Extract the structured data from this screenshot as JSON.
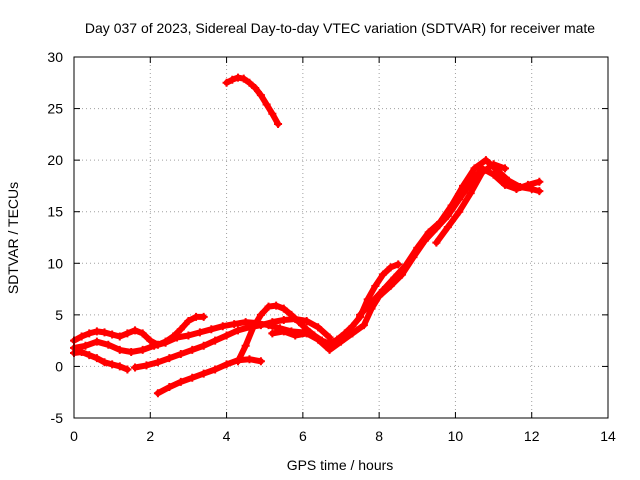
{
  "chart_data": {
    "type": "scatter",
    "title": "Day 037 of 2023, Sidereal Day-to-day VTEC variation (SDTVAR) for receiver mate",
    "xlabel": "GPS time / hours",
    "ylabel": "SDTVAR / TECUs",
    "xlim": [
      0,
      14
    ],
    "ylim": [
      -5,
      30
    ],
    "xticks": [
      0,
      2,
      4,
      6,
      8,
      10,
      12,
      14
    ],
    "yticks": [
      -5,
      0,
      5,
      10,
      15,
      20,
      25,
      30
    ],
    "grid": true,
    "series_color": "#ff0000",
    "series": [
      {
        "x": [
          0.0,
          0.2,
          0.4,
          0.6,
          0.8,
          1.0,
          1.2,
          1.4,
          1.6,
          1.8,
          2.0,
          2.2,
          2.4,
          2.6,
          2.8,
          3.0,
          3.2,
          3.4
        ],
        "y": [
          2.5,
          2.9,
          3.2,
          3.4,
          3.3,
          3.1,
          2.9,
          3.2,
          3.5,
          3.2,
          2.5,
          2.1,
          2.4,
          2.9,
          3.6,
          4.4,
          4.8,
          4.8
        ]
      },
      {
        "x": [
          0.0,
          0.3,
          0.6,
          0.9,
          1.2,
          1.5,
          1.8,
          2.1,
          2.4,
          2.7,
          3.0,
          3.3,
          3.6,
          3.9,
          4.2,
          4.5,
          4.8,
          5.1,
          5.4,
          5.7,
          6.0
        ],
        "y": [
          1.8,
          2.0,
          2.4,
          2.1,
          1.6,
          1.4,
          1.6,
          2.0,
          2.3,
          2.8,
          3.0,
          3.3,
          3.6,
          3.9,
          4.1,
          4.3,
          4.2,
          4.0,
          3.7,
          3.4,
          3.3
        ]
      },
      {
        "x": [
          0.0,
          0.2,
          0.4,
          0.6,
          0.8,
          1.0,
          1.2,
          1.4
        ],
        "y": [
          1.3,
          1.4,
          1.1,
          0.8,
          0.4,
          0.2,
          0.0,
          -0.3
        ]
      },
      {
        "x": [
          1.6,
          1.9,
          2.2,
          2.5,
          2.8,
          3.1,
          3.4,
          3.7,
          4.0,
          4.3,
          4.6,
          4.9,
          5.2,
          5.5,
          5.8,
          6.1,
          6.4,
          6.7
        ],
        "y": [
          -0.1,
          0.1,
          0.4,
          0.8,
          1.2,
          1.6,
          2.0,
          2.5,
          3.0,
          3.5,
          3.8,
          4.0,
          4.3,
          4.5,
          4.6,
          4.4,
          3.8,
          2.8
        ]
      },
      {
        "x": [
          2.2,
          2.5,
          2.8,
          3.1,
          3.4,
          3.7,
          4.0,
          4.3,
          4.6,
          4.9
        ],
        "y": [
          -2.6,
          -2.0,
          -1.5,
          -1.1,
          -0.7,
          -0.3,
          0.2,
          0.6,
          0.7,
          0.5
        ]
      },
      {
        "x": [
          4.3,
          4.5,
          4.7,
          4.9,
          5.1,
          5.3,
          5.5,
          5.7,
          5.9,
          6.1,
          6.3,
          6.5,
          6.7,
          6.9,
          7.1,
          7.3,
          7.5,
          7.7,
          7.9,
          8.1,
          8.3,
          8.5
        ],
        "y": [
          0.5,
          2.0,
          3.8,
          5.0,
          5.8,
          5.9,
          5.6,
          5.0,
          4.3,
          3.6,
          3.0,
          2.5,
          2.2,
          2.6,
          3.2,
          3.9,
          4.8,
          6.5,
          7.8,
          8.9,
          9.6,
          9.9
        ]
      },
      {
        "x": [
          5.2,
          5.5,
          5.8,
          6.1,
          6.4,
          6.7,
          7.0,
          7.3,
          7.6,
          7.8,
          8.0,
          8.3,
          8.6,
          8.9,
          9.2,
          9.5,
          9.8,
          10.1,
          10.4,
          10.7,
          11.0,
          11.3,
          11.6,
          11.9,
          12.2
        ],
        "y": [
          3.2,
          3.4,
          3.0,
          3.2,
          2.6,
          1.6,
          2.4,
          3.2,
          4.0,
          5.6,
          6.8,
          7.8,
          8.9,
          10.6,
          12.2,
          13.4,
          14.6,
          16.2,
          17.8,
          19.2,
          18.6,
          17.6,
          17.2,
          17.6,
          17.9
        ]
      },
      {
        "x": [
          7.5,
          7.8,
          8.1,
          8.4,
          8.7,
          9.0,
          9.3,
          9.6,
          9.9,
          10.2,
          10.5,
          10.8,
          11.1,
          11.4,
          11.7,
          12.0,
          12.2
        ],
        "y": [
          5.0,
          6.2,
          7.4,
          8.6,
          9.8,
          11.5,
          13.0,
          14.0,
          15.6,
          17.5,
          19.2,
          20.0,
          19.0,
          18.0,
          17.4,
          17.2,
          17.0
        ]
      },
      {
        "x": [
          9.5,
          9.8,
          10.1,
          10.4,
          10.7,
          11.0,
          11.3
        ],
        "y": [
          12.0,
          13.5,
          15.0,
          16.8,
          18.8,
          19.6,
          19.2
        ]
      },
      {
        "x": [
          4.0,
          4.15,
          4.3,
          4.45,
          4.6,
          4.75,
          4.9,
          5.05,
          5.2,
          5.35
        ],
        "y": [
          27.5,
          27.8,
          28.0,
          27.9,
          27.5,
          27.0,
          26.3,
          25.4,
          24.5,
          23.5
        ]
      }
    ]
  }
}
